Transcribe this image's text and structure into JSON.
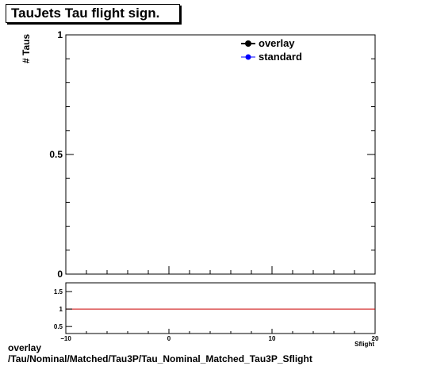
{
  "title": "TauJets Tau flight sign.",
  "footer": {
    "line1": "overlay",
    "line2": "/Tau/Nominal/Matched/Tau3P/Tau_Nominal_Matched_Tau3P_Sflight"
  },
  "colors": {
    "overlay": "#000000",
    "standard": "#0000ff",
    "ratio_line": "#cc0000"
  },
  "chart_data": [
    {
      "type": "line",
      "title": "TauJets Tau flight sign.",
      "ylabel": "# Taus",
      "xlabel": "Sflight",
      "xlim": [
        -10,
        20
      ],
      "ylim": [
        0,
        1
      ],
      "yticks": [
        {
          "value": 0,
          "label": "0"
        },
        {
          "value": 0.5,
          "label": "0.5"
        },
        {
          "value": 1,
          "label": "1"
        }
      ],
      "legend_position": "top-right",
      "series": [
        {
          "name": "overlay",
          "color": "#000000",
          "marker": "circle",
          "x": [],
          "y": []
        },
        {
          "name": "standard",
          "color": "#0000ff",
          "marker": "circle",
          "x": [],
          "y": []
        }
      ],
      "grid": false
    },
    {
      "type": "line",
      "xlabel": "Sflight",
      "xlim": [
        -10,
        20
      ],
      "ylim": [
        0.3,
        1.75
      ],
      "xticks": [
        {
          "value": -10,
          "label": "−10"
        },
        {
          "value": 0,
          "label": "0"
        },
        {
          "value": 10,
          "label": "10"
        },
        {
          "value": 20,
          "label": "20"
        }
      ],
      "yticks": [
        {
          "value": 0.5,
          "label": "0.5"
        },
        {
          "value": 1,
          "label": "1"
        },
        {
          "value": 1.5,
          "label": "1.5"
        }
      ],
      "reference_line": 1,
      "grid": false
    }
  ]
}
